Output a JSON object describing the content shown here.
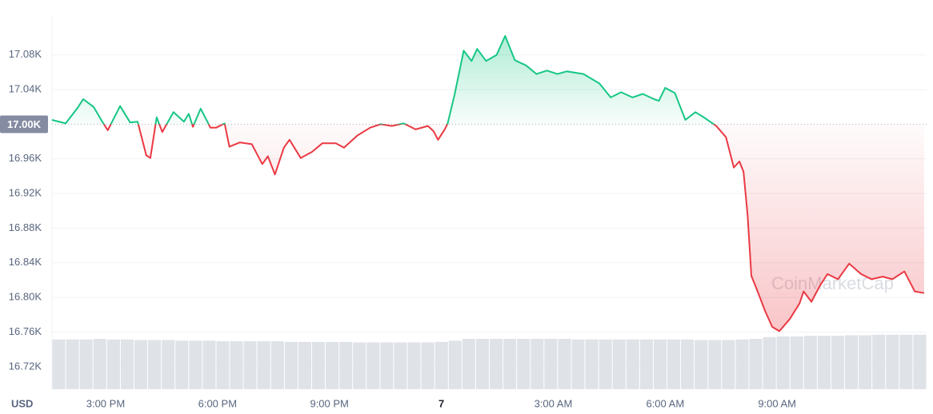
{
  "chart_data": {
    "type": "line",
    "x": [
      13.56,
      13.93,
      14.25,
      14.4,
      14.68,
      14.91,
      15.06,
      15.39,
      15.66,
      15.86,
      16.09,
      16.2,
      16.37,
      16.52,
      16.82,
      17.1,
      17.23,
      17.34,
      17.55,
      17.81,
      17.96,
      18.19,
      18.32,
      18.6,
      18.92,
      19.2,
      19.35,
      19.54,
      19.78,
      19.93,
      20.23,
      20.53,
      20.81,
      21.17,
      21.39,
      21.75,
      22.09,
      22.37,
      22.67,
      22.99,
      23.31,
      23.64,
      23.79,
      23.91,
      24.09,
      24.17,
      24.36,
      24.6,
      24.81,
      24.96,
      25.2,
      25.48,
      25.71,
      25.97,
      26.27,
      26.55,
      26.83,
      27.11,
      27.36,
      27.81,
      28.24,
      28.54,
      28.82,
      29.12,
      29.4,
      29.7,
      29.83,
      30.0,
      30.26,
      30.54,
      30.81,
      31.07,
      31.37,
      31.63,
      31.84,
      31.99,
      32.1,
      32.21,
      32.31,
      32.44,
      32.68,
      32.87,
      33.06,
      33.34,
      33.6,
      33.71,
      33.92,
      34.14,
      34.35,
      34.63,
      34.93,
      35.25,
      35.53,
      35.83,
      36.09,
      36.41,
      36.69,
      36.94
    ],
    "values": [
      17005,
      17001,
      17019,
      17029,
      17020,
      17003,
      16993,
      17021,
      17002,
      17003,
      16964,
      16961,
      17008,
      16991,
      17014,
      17003,
      17012,
      16997,
      17018,
      16996,
      16996,
      17001,
      16974,
      16979,
      16977,
      16954,
      16963,
      16942,
      16973,
      16982,
      16961,
      16968,
      16978,
      16978,
      16973,
      16987,
      16996,
      17000,
      16998,
      17001,
      16994,
      16998,
      16992,
      16982,
      16994,
      17001,
      17035,
      17085,
      17073,
      17087,
      17073,
      17080,
      17102,
      17074,
      17068,
      17058,
      17062,
      17058,
      17061,
      17058,
      17047,
      17031,
      17037,
      17031,
      17035,
      17029,
      17027,
      17042,
      17036,
      17005,
      17014,
      17007,
      16998,
      16985,
      16950,
      16957,
      16945,
      16895,
      16825,
      16811,
      16784,
      16766,
      16761,
      16775,
      16793,
      16807,
      16795,
      16813,
      16827,
      16821,
      16839,
      16827,
      16821,
      16824,
      16821,
      16830,
      16807,
      16805
    ],
    "colors": {
      "above": "#16c784",
      "below": "#ea3943"
    },
    "baseline": {
      "value": 17000,
      "label": "17.00K"
    },
    "xlim": [
      13.564,
      37.007
    ],
    "xticks": [
      {
        "value": 15,
        "label": "3:00 PM"
      },
      {
        "value": 18,
        "label": "6:00 PM"
      },
      {
        "value": 21,
        "label": "9:00 PM"
      },
      {
        "value": 24,
        "label": "7",
        "bold": true
      },
      {
        "value": 27,
        "label": "3:00 AM"
      },
      {
        "value": 30,
        "label": "6:00 AM"
      },
      {
        "value": 33,
        "label": "9:00 AM"
      }
    ],
    "ylim": [
      16694,
      17125
    ],
    "yticks": [
      {
        "value": 17080,
        "label": "17.08K"
      },
      {
        "value": 17040,
        "label": "17.04K"
      },
      {
        "value": 16960,
        "label": "16.96K"
      },
      {
        "value": 16920,
        "label": "16.92K"
      },
      {
        "value": 16880,
        "label": "16.88K"
      },
      {
        "value": 16840,
        "label": "16.84K"
      },
      {
        "value": 16800,
        "label": "16.80K"
      },
      {
        "value": 16760,
        "label": "16.76K"
      },
      {
        "value": 16720,
        "label": "16.72K"
      }
    ],
    "grid": true,
    "y_unit_label": "USD",
    "watermark": "CoinMarketCap",
    "volume": {
      "color": "#dfe2e7",
      "lim": [
        0,
        100
      ],
      "values": [
        83,
        83,
        83,
        84,
        83,
        83,
        82,
        82,
        82,
        81,
        81,
        81,
        80,
        80,
        80,
        80,
        80,
        79,
        79,
        79,
        79,
        79,
        78,
        78,
        78,
        78,
        78,
        78,
        79,
        81,
        84,
        84,
        84,
        84,
        84,
        84,
        84,
        84,
        83,
        83,
        83,
        83,
        83,
        83,
        83,
        83,
        83,
        82,
        82,
        82,
        83,
        84,
        87,
        88,
        88,
        89,
        89,
        89,
        90,
        90,
        91,
        91,
        91,
        91
      ]
    }
  }
}
